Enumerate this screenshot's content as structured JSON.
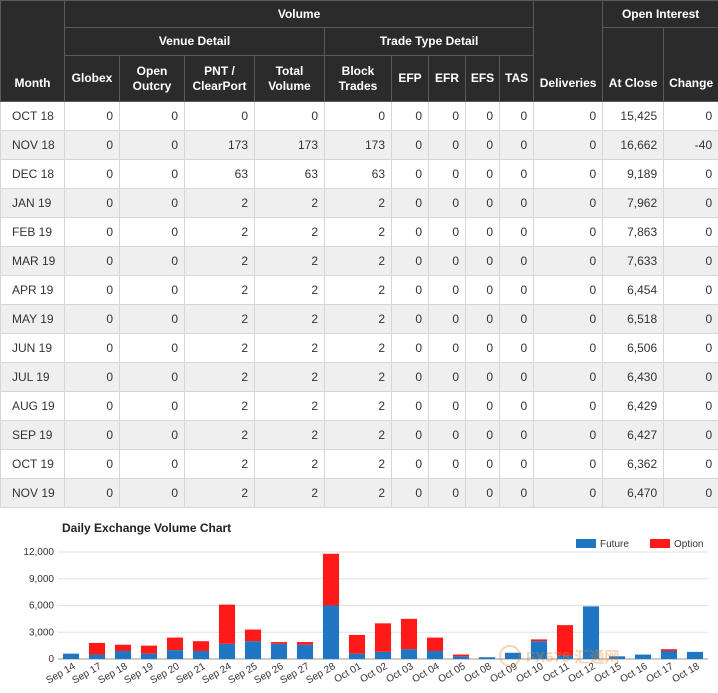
{
  "table": {
    "headers": {
      "volume": "Volume",
      "open_interest": "Open Interest",
      "venue_detail": "Venue Detail",
      "trade_type_detail": "Trade Type Detail",
      "month": "Month",
      "globex": "Globex",
      "open_outcry": "Open Outcry",
      "pnt_clearport": "PNT / ClearPort",
      "total_volume": "Total Volume",
      "block_trades": "Block Trades",
      "efp": "EFP",
      "efr": "EFR",
      "efs": "EFS",
      "tas": "TAS",
      "deliveries": "Deliveries",
      "at_close": "At Close",
      "change": "Change"
    },
    "rows": [
      [
        "OCT 18",
        "0",
        "0",
        "0",
        "0",
        "0",
        "0",
        "0",
        "0",
        "0",
        "0",
        "15,425",
        "0"
      ],
      [
        "NOV 18",
        "0",
        "0",
        "173",
        "173",
        "173",
        "0",
        "0",
        "0",
        "0",
        "0",
        "16,662",
        "-40"
      ],
      [
        "DEC 18",
        "0",
        "0",
        "63",
        "63",
        "63",
        "0",
        "0",
        "0",
        "0",
        "0",
        "9,189",
        "0"
      ],
      [
        "JAN 19",
        "0",
        "0",
        "2",
        "2",
        "2",
        "0",
        "0",
        "0",
        "0",
        "0",
        "7,962",
        "0"
      ],
      [
        "FEB 19",
        "0",
        "0",
        "2",
        "2",
        "2",
        "0",
        "0",
        "0",
        "0",
        "0",
        "7,863",
        "0"
      ],
      [
        "MAR 19",
        "0",
        "0",
        "2",
        "2",
        "2",
        "0",
        "0",
        "0",
        "0",
        "0",
        "7,633",
        "0"
      ],
      [
        "APR 19",
        "0",
        "0",
        "2",
        "2",
        "2",
        "0",
        "0",
        "0",
        "0",
        "0",
        "6,454",
        "0"
      ],
      [
        "MAY 19",
        "0",
        "0",
        "2",
        "2",
        "2",
        "0",
        "0",
        "0",
        "0",
        "0",
        "6,518",
        "0"
      ],
      [
        "JUN 19",
        "0",
        "0",
        "2",
        "2",
        "2",
        "0",
        "0",
        "0",
        "0",
        "0",
        "6,506",
        "0"
      ],
      [
        "JUL 19",
        "0",
        "0",
        "2",
        "2",
        "2",
        "0",
        "0",
        "0",
        "0",
        "0",
        "6,430",
        "0"
      ],
      [
        "AUG 19",
        "0",
        "0",
        "2",
        "2",
        "2",
        "0",
        "0",
        "0",
        "0",
        "0",
        "6,429",
        "0"
      ],
      [
        "SEP 19",
        "0",
        "0",
        "2",
        "2",
        "2",
        "0",
        "0",
        "0",
        "0",
        "0",
        "6,427",
        "0"
      ],
      [
        "OCT 19",
        "0",
        "0",
        "2",
        "2",
        "2",
        "0",
        "0",
        "0",
        "0",
        "0",
        "6,362",
        "0"
      ],
      [
        "NOV 19",
        "0",
        "0",
        "2",
        "2",
        "2",
        "0",
        "0",
        "0",
        "0",
        "0",
        "6,470",
        "0"
      ]
    ]
  },
  "chart_data": {
    "type": "bar",
    "stacked": true,
    "title": "Daily Exchange Volume Chart",
    "categories": [
      "Sep 14",
      "Sep 17",
      "Sep 18",
      "Sep 19",
      "Sep 20",
      "Sep 21",
      "Sep 24",
      "Sep 25",
      "Sep 26",
      "Sep 27",
      "Sep 28",
      "Oct 01",
      "Oct 02",
      "Oct 03",
      "Oct 04",
      "Oct 05",
      "Oct 08",
      "Oct 09",
      "Oct 10",
      "Oct 11",
      "Oct 12",
      "Oct 15",
      "Oct 16",
      "Oct 17",
      "Oct 18"
    ],
    "series": [
      {
        "name": "Future",
        "color": "#1f77c4",
        "values": [
          600,
          500,
          900,
          600,
          1000,
          900,
          1700,
          2000,
          1700,
          1600,
          6000,
          600,
          800,
          1100,
          900,
          300,
          200,
          700,
          2000,
          400,
          5900,
          300,
          500,
          900,
          800
        ]
      },
      {
        "name": "Option",
        "color": "#ff1a1a",
        "values": [
          0,
          1300,
          700,
          900,
          1400,
          1100,
          4400,
          1300,
          200,
          300,
          5800,
          2100,
          3200,
          3400,
          1500,
          200,
          0,
          0,
          200,
          3400,
          0,
          0,
          0,
          200,
          0
        ]
      }
    ],
    "ylim": [
      0,
      12000
    ],
    "yticks": [
      "0",
      "3,000",
      "6,000",
      "9,000",
      "12,000"
    ],
    "legend": "top-right",
    "grid": true
  },
  "watermark": {
    "text": "FX678 汇通网"
  }
}
